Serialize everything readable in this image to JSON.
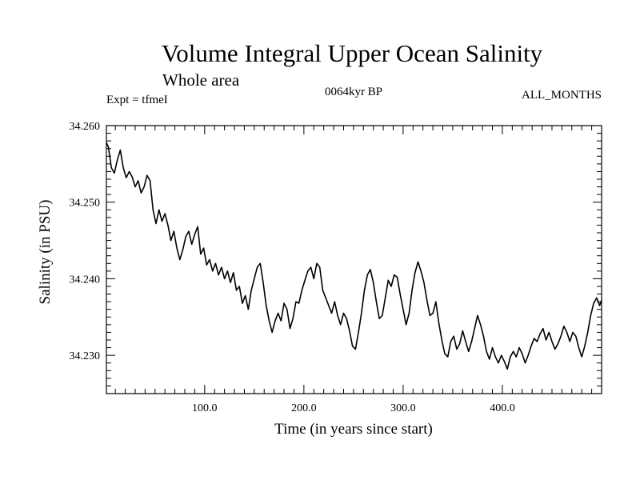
{
  "chart_data": {
    "type": "line",
    "title": "Volume Integral Upper Ocean Salinity",
    "subtitle": "Whole area",
    "annotations": {
      "left": "Expt = tfmeI",
      "center": "0064kyr BP",
      "right": "ALL_MONTHS"
    },
    "xlabel": "Time (in years since start)",
    "ylabel": "Salinity (in PSU)",
    "xlim": [
      1,
      500
    ],
    "ylim": [
      34.225,
      34.26
    ],
    "x_ticks": [
      100,
      200,
      300,
      400
    ],
    "x_tick_labels": [
      "100.0",
      "200.0",
      "300.0",
      "400.0"
    ],
    "y_ticks": [
      34.23,
      34.24,
      34.25,
      34.26
    ],
    "y_tick_labels": [
      "34.230",
      "34.240",
      "34.250",
      "34.260"
    ],
    "grid": false,
    "line_color": "#000000",
    "series": [
      {
        "name": "Salinity",
        "x": [
          1,
          3,
          6,
          9,
          12,
          15,
          18,
          21,
          24,
          27,
          30,
          33,
          36,
          39,
          42,
          45,
          48,
          51,
          54,
          57,
          60,
          63,
          66,
          69,
          72,
          75,
          78,
          81,
          84,
          87,
          90,
          93,
          96,
          99,
          102,
          105,
          108,
          111,
          114,
          117,
          120,
          123,
          126,
          129,
          132,
          135,
          138,
          141,
          144,
          147,
          150,
          153,
          156,
          159,
          162,
          165,
          168,
          171,
          174,
          177,
          180,
          183,
          186,
          189,
          192,
          195,
          198,
          201,
          204,
          207,
          210,
          213,
          216,
          219,
          222,
          225,
          228,
          231,
          234,
          237,
          240,
          243,
          246,
          249,
          252,
          255,
          258,
          261,
          264,
          267,
          270,
          273,
          276,
          279,
          282,
          285,
          288,
          291,
          294,
          297,
          300,
          303,
          306,
          309,
          312,
          315,
          318,
          321,
          324,
          327,
          330,
          333,
          336,
          339,
          342,
          345,
          348,
          351,
          354,
          357,
          360,
          363,
          366,
          369,
          372,
          375,
          378,
          381,
          384,
          387,
          390,
          393,
          396,
          399,
          402,
          405,
          408,
          411,
          414,
          417,
          420,
          423,
          426,
          429,
          432,
          435,
          438,
          441,
          444,
          447,
          450,
          453,
          456,
          459,
          462,
          465,
          468,
          471,
          474,
          477,
          480,
          483,
          486,
          489,
          492,
          495,
          498,
          500
        ],
        "values": [
          34.2578,
          34.2572,
          34.2545,
          34.2538,
          34.2555,
          34.2568,
          34.2545,
          34.2532,
          34.254,
          34.2533,
          34.252,
          34.2528,
          34.2512,
          34.252,
          34.2535,
          34.2528,
          34.249,
          34.2472,
          34.249,
          34.2475,
          34.2485,
          34.247,
          34.245,
          34.2462,
          34.244,
          34.2425,
          34.2438,
          34.2455,
          34.2462,
          34.2445,
          34.2458,
          34.2468,
          34.2432,
          34.244,
          34.2418,
          34.2425,
          34.241,
          34.242,
          34.2405,
          34.2415,
          34.24,
          34.241,
          34.2395,
          34.2408,
          34.2385,
          34.239,
          34.2368,
          34.2378,
          34.236,
          34.2385,
          34.24,
          34.2415,
          34.242,
          34.2395,
          34.2365,
          34.2345,
          34.233,
          34.2345,
          34.2355,
          34.2345,
          34.2368,
          34.236,
          34.2335,
          34.2348,
          34.237,
          34.2368,
          34.2385,
          34.2398,
          34.241,
          34.2415,
          34.24,
          34.242,
          34.2415,
          34.2385,
          34.2375,
          34.2365,
          34.2355,
          34.237,
          34.2352,
          34.234,
          34.2355,
          34.2348,
          34.2332,
          34.2312,
          34.2308,
          34.233,
          34.2355,
          34.2385,
          34.2405,
          34.2412,
          34.2395,
          34.237,
          34.2348,
          34.2352,
          34.2375,
          34.2398,
          34.239,
          34.2405,
          34.2402,
          34.238,
          34.236,
          34.234,
          34.2355,
          34.2385,
          34.2408,
          34.2422,
          34.241,
          34.2395,
          34.2372,
          34.2352,
          34.2355,
          34.237,
          34.2342,
          34.232,
          34.2302,
          34.2298,
          34.2318,
          34.2325,
          34.2308,
          34.2315,
          34.2332,
          34.2318,
          34.2305,
          34.2318,
          34.2335,
          34.2352,
          34.234,
          34.2325,
          34.2305,
          34.2295,
          34.231,
          34.2298,
          34.229,
          34.23,
          34.2292,
          34.2282,
          34.2298,
          34.2305,
          34.2298,
          34.231,
          34.2302,
          34.229,
          34.23,
          34.2312,
          34.2322,
          34.2318,
          34.2328,
          34.2335,
          34.232,
          34.233,
          34.2318,
          34.2308,
          34.2315,
          34.2325,
          34.2338,
          34.233,
          34.2318,
          34.233,
          34.2325,
          34.231,
          34.2298,
          34.2312,
          34.233,
          34.2352,
          34.2368,
          34.2375,
          34.2365,
          34.2372
        ]
      }
    ]
  }
}
